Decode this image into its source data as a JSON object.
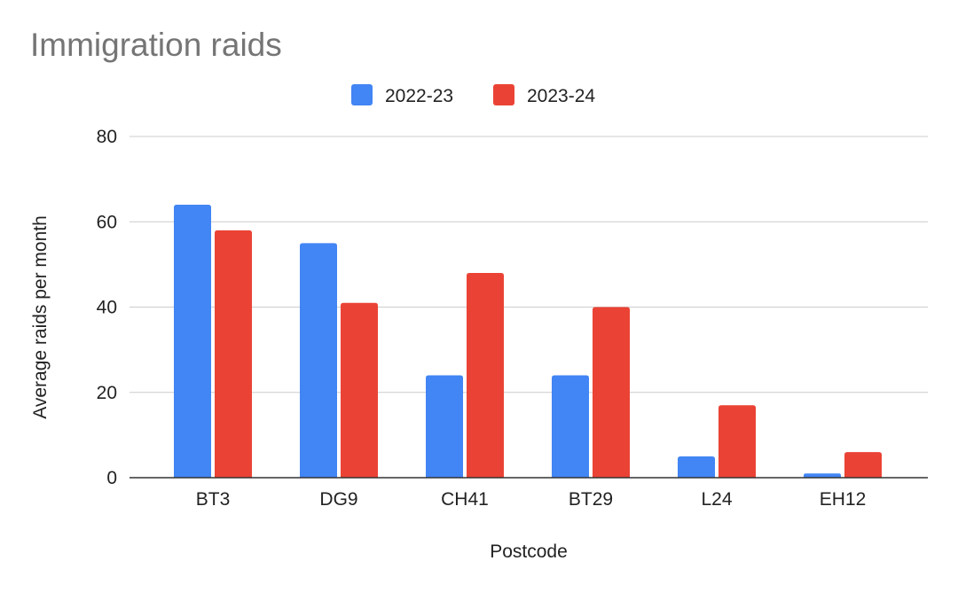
{
  "chart_data": {
    "type": "bar",
    "title": "Immigration raids",
    "xlabel": "Postcode",
    "ylabel": "Average raids per month",
    "categories": [
      "BT3",
      "DG9",
      "CH41",
      "BT29",
      "L24",
      "EH12"
    ],
    "series": [
      {
        "name": "2022-23",
        "color": "#4285f4",
        "values": [
          64,
          55,
          24,
          24,
          5,
          1
        ]
      },
      {
        "name": "2023-24",
        "color": "#ea4335",
        "values": [
          58,
          41,
          48,
          40,
          17,
          6
        ]
      }
    ],
    "ylim": [
      0,
      80
    ],
    "yticks": [
      0,
      20,
      40,
      60,
      80
    ],
    "grid": true,
    "legend_position": "top"
  }
}
